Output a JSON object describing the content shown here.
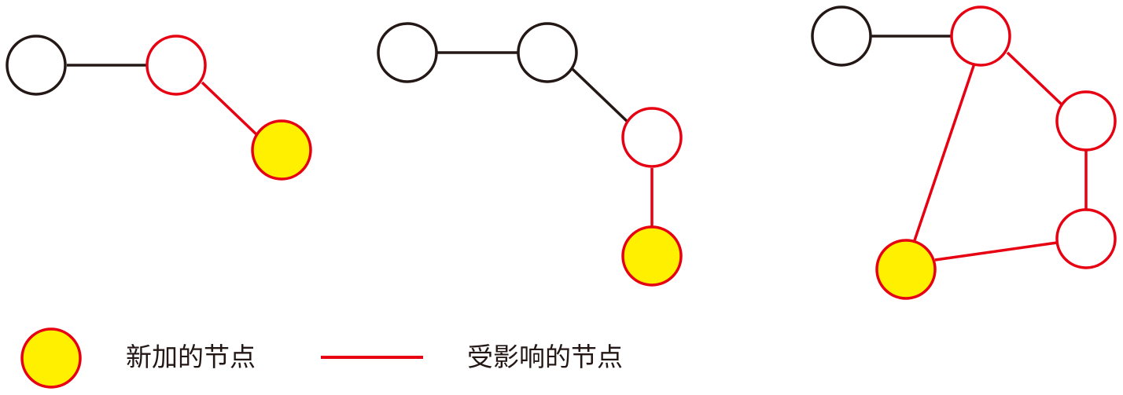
{
  "colors": {
    "background": "#FFFFFF",
    "black_edge": "#231815",
    "black_node": "#231815",
    "affected": "#E60012",
    "new_node_fill": "#FFF000"
  },
  "legend": {
    "new_node_label": "新加的节点",
    "affected_label": "受影响的节点"
  }
}
